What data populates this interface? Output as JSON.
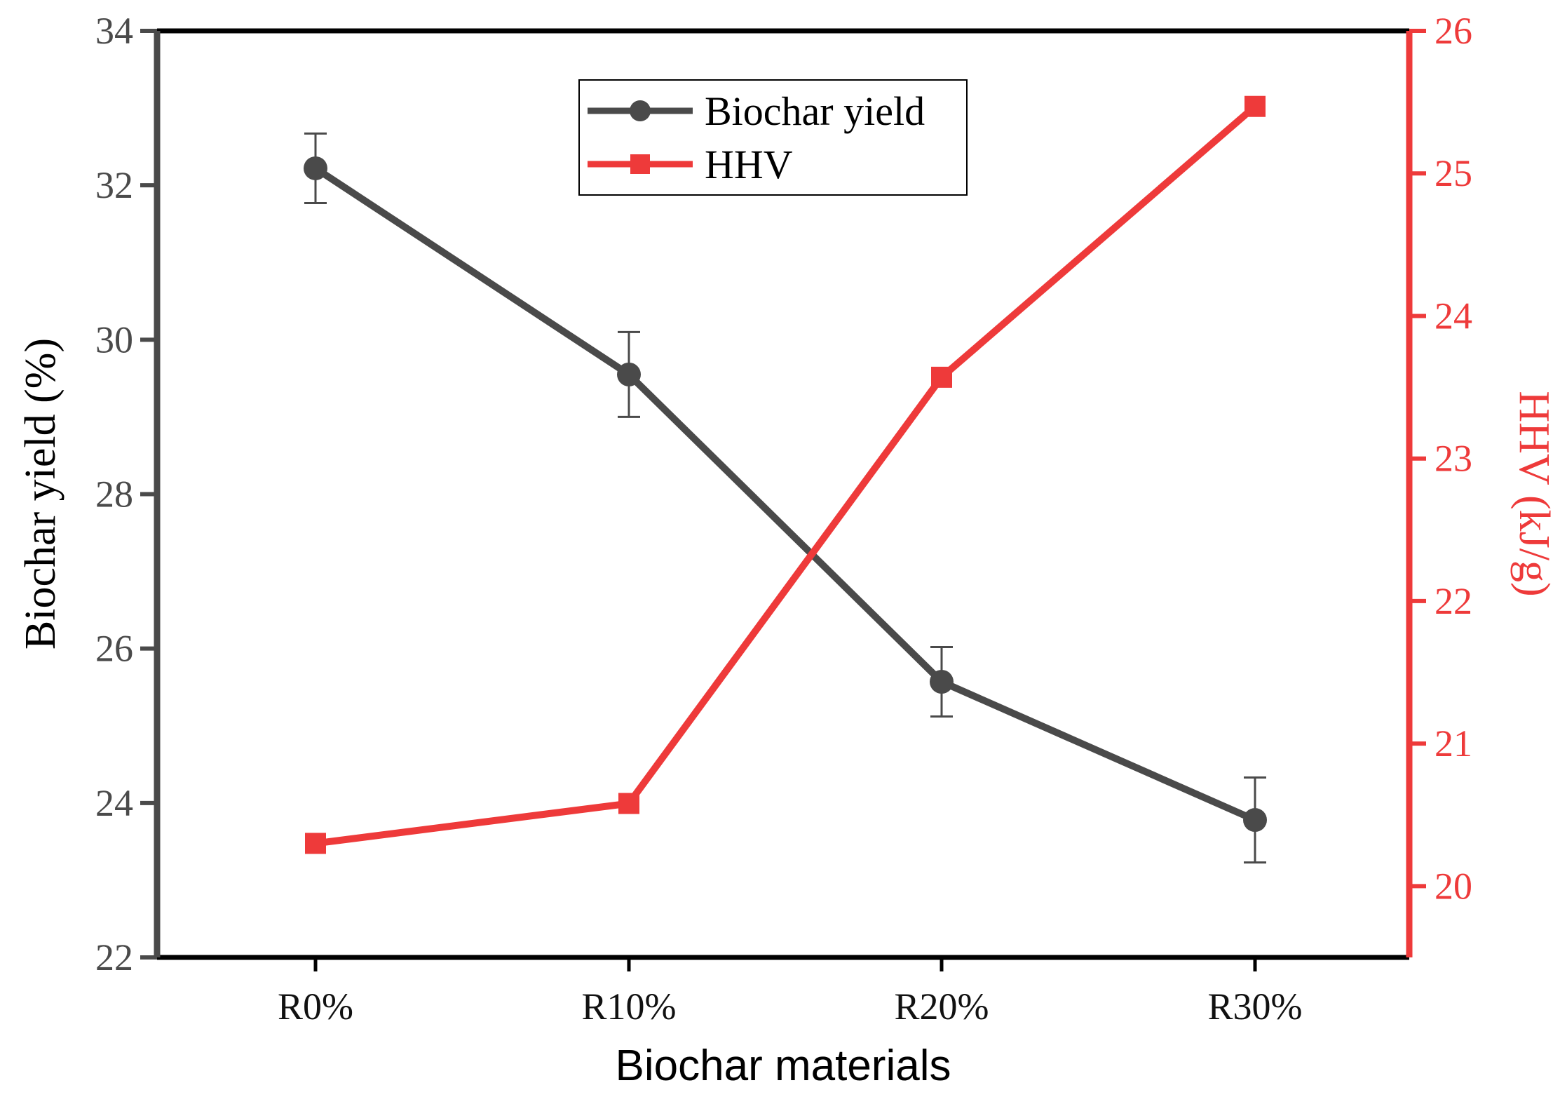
{
  "chart_data": {
    "type": "line",
    "categories": [
      "R0%",
      "R10%",
      "R20%",
      "R30%"
    ],
    "xlabel": "Biochar materials",
    "ylabel_left": "Biochar yield (%)",
    "ylabel_right": "HHV (kJ/g)",
    "y_left": {
      "min": 22,
      "max": 34,
      "ticks": [
        22,
        24,
        26,
        28,
        30,
        32,
        34
      ]
    },
    "y_right": {
      "min": 19.5,
      "max": 26,
      "ticks": [
        20,
        21,
        22,
        23,
        24,
        25,
        26
      ]
    },
    "grid": false,
    "legend_position": "top-center",
    "series": [
      {
        "name": "Biochar yield",
        "axis": "left",
        "marker": "circle",
        "color": "#4a4a4a",
        "values": [
          32.22,
          29.55,
          25.57,
          23.78
        ],
        "errors": [
          0.45,
          0.55,
          0.45,
          0.55
        ]
      },
      {
        "name": "HHV",
        "axis": "right",
        "marker": "square",
        "color": "#ee3a3a",
        "values": [
          20.3,
          20.58,
          23.57,
          25.47
        ]
      }
    ]
  }
}
